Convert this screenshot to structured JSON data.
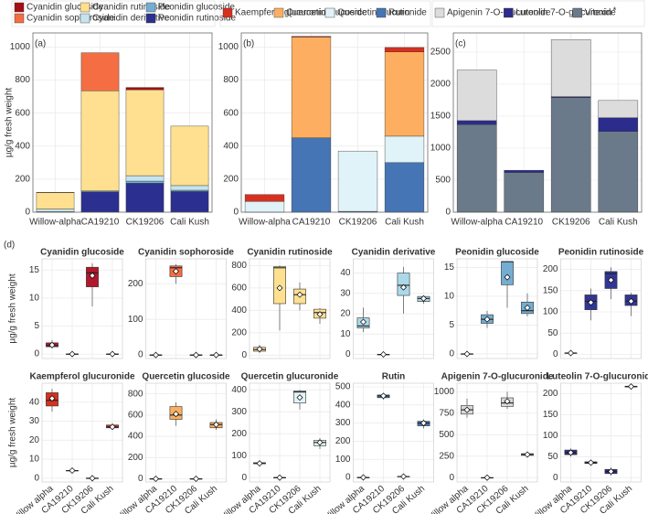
{
  "chart_data": [
    {
      "type": "bar",
      "panel": "(a)",
      "ylabel": "µg/g fresh weight",
      "categories": [
        "Willow-alpha",
        "CA19210",
        "CK19206",
        "Cali Kush"
      ],
      "ylim": [
        0,
        1085
      ],
      "yticks": [
        0,
        200,
        400,
        600,
        800,
        1000
      ],
      "series": [
        {
          "name": "Cyanidin glucoside",
          "color": "#a50f15",
          "values": [
            1.5,
            0,
            14,
            0
          ]
        },
        {
          "name": "Cyanidin sophoroside",
          "color": "#f46d43",
          "values": [
            0,
            230,
            0,
            0
          ]
        },
        {
          "name": "Cyanidin rutinoside",
          "color": "#fee090",
          "values": [
            100,
            606,
            520,
            360
          ]
        },
        {
          "name": "Cyanidin derivative",
          "color": "#c6e4ef",
          "values": [
            16,
            0,
            33,
            28
          ]
        },
        {
          "name": "Peonidin glucoside",
          "color": "#74add1",
          "values": [
            0,
            6,
            13,
            8
          ]
        },
        {
          "name": "Peonidin rutinoside",
          "color": "#2b2f8f",
          "values": [
            3,
            123,
            175,
            125
          ]
        }
      ]
    },
    {
      "type": "bar",
      "panel": "(b)",
      "categories": [
        "Willow-alpha",
        "CA19210",
        "CK19206",
        "Cali Kush"
      ],
      "ylim": [
        0,
        1085
      ],
      "yticks": [
        0,
        200,
        400,
        600,
        800,
        1000
      ],
      "series": [
        {
          "name": "Kaempferol glucuronide",
          "color": "#d7301f",
          "values": [
            42,
            4,
            0,
            27
          ]
        },
        {
          "name": "Quercetin glucoside",
          "color": "#fdae61",
          "values": [
            0,
            610,
            0,
            510
          ]
        },
        {
          "name": "Quercetin glucuronide",
          "color": "#e0f3f8",
          "values": [
            65,
            0,
            365,
            160
          ]
        },
        {
          "name": "Rutin",
          "color": "#4575b4",
          "values": [
            0,
            450,
            5,
            300
          ]
        }
      ]
    },
    {
      "type": "bar",
      "panel": "(c)",
      "annotation": "*",
      "categories": [
        "Willow-alpha",
        "CA19210",
        "CK19206",
        "Cali Kush"
      ],
      "ylim": [
        0,
        2800
      ],
      "yticks": [
        0,
        500,
        1000,
        1500,
        2000,
        2500
      ],
      "series": [
        {
          "name": "Apigenin 7-O-glucuronide",
          "color": "#dcdcdc",
          "values": [
            790,
            0,
            890,
            270
          ]
        },
        {
          "name": "Luteolin 7-O-glucuronide",
          "color": "#2c2c8c",
          "values": [
            60,
            35,
            15,
            215
          ]
        },
        {
          "name": "Vitexin",
          "color": "#6b7a8a",
          "values": [
            1370,
            620,
            1790,
            1260
          ]
        }
      ]
    },
    {
      "type": "box",
      "panel": "(d)",
      "ylabel": "µg/g fresh weight",
      "title": "Cyanidin glucoside",
      "color": "#b2182b",
      "ylim": [
        -0.8,
        17
      ],
      "yticks": [
        0,
        5,
        10,
        15
      ],
      "boxes": [
        {
          "min": 1,
          "q1": 1.3,
          "median": 1.5,
          "q3": 2,
          "max": 2.5,
          "mean": 1.6
        },
        {
          "min": 0,
          "q1": 0,
          "median": 0,
          "q3": 0,
          "max": 0,
          "mean": 0
        },
        {
          "min": 8.5,
          "q1": 12,
          "median": 14.5,
          "q3": 15.5,
          "max": 16.2,
          "mean": 14
        },
        {
          "min": 0,
          "q1": 0,
          "median": 0,
          "q3": 0,
          "max": 0,
          "mean": 0
        }
      ]
    },
    {
      "type": "box",
      "title": "Cyanidin sophoroside",
      "color": "#f46d43",
      "ylim": [
        -10,
        270
      ],
      "yticks": [
        0,
        100,
        200
      ],
      "boxes": [
        {
          "min": 0,
          "q1": 0,
          "median": 0,
          "q3": 0,
          "max": 0,
          "mean": 0
        },
        {
          "min": 200,
          "q1": 220,
          "median": 245,
          "q3": 250,
          "max": 255,
          "mean": 235
        },
        {
          "min": 0,
          "q1": 0,
          "median": 0,
          "q3": 0,
          "max": 0,
          "mean": 0
        },
        {
          "min": 0,
          "q1": 0,
          "median": 0,
          "q3": 0,
          "max": 0,
          "mean": 0
        }
      ]
    },
    {
      "type": "box",
      "title": "Cyanidin rutinoside",
      "color": "#fee090",
      "ylim": [
        -30,
        860
      ],
      "yticks": [
        0,
        200,
        400,
        600,
        800
      ],
      "boxes": [
        {
          "min": 20,
          "q1": 35,
          "median": 50,
          "q3": 70,
          "max": 90,
          "mean": 55
        },
        {
          "min": 220,
          "q1": 460,
          "median": 780,
          "q3": 790,
          "max": 800,
          "mean": 600
        },
        {
          "min": 400,
          "q1": 460,
          "median": 540,
          "q3": 590,
          "max": 650,
          "mean": 540
        },
        {
          "min": 280,
          "q1": 330,
          "median": 380,
          "q3": 410,
          "max": 420,
          "mean": 365
        }
      ]
    },
    {
      "type": "box",
      "title": "Cyanidin derivative",
      "color": "#abd9e9",
      "ylim": [
        -2,
        47
      ],
      "yticks": [
        0,
        10,
        20,
        30,
        40
      ],
      "boxes": [
        {
          "min": 11,
          "q1": 13,
          "median": 14,
          "q3": 18,
          "max": 23,
          "mean": 16
        },
        {
          "min": 0,
          "q1": 0,
          "median": 0,
          "q3": 0,
          "max": 0,
          "mean": 0
        },
        {
          "min": 20,
          "q1": 29,
          "median": 34,
          "q3": 40,
          "max": 43,
          "mean": 33
        },
        {
          "min": 25,
          "q1": 26,
          "median": 27.5,
          "q3": 28.5,
          "max": 29,
          "mean": 27.5
        }
      ]
    },
    {
      "type": "box",
      "title": "Peonidin glucoside",
      "color": "#74add1",
      "ylim": [
        -0.8,
        16.5
      ],
      "yticks": [
        0,
        5,
        10,
        15
      ],
      "boxes": [
        {
          "min": 0,
          "q1": 0,
          "median": 0,
          "q3": 0,
          "max": 0,
          "mean": 0
        },
        {
          "min": 4.5,
          "q1": 5.3,
          "median": 6,
          "q3": 6.8,
          "max": 7.5,
          "mean": 6
        },
        {
          "min": 8,
          "q1": 12,
          "median": 16,
          "q3": 16,
          "max": 16,
          "mean": 13.3
        },
        {
          "min": 6.5,
          "q1": 7,
          "median": 7.5,
          "q3": 9,
          "max": 10.5,
          "mean": 8
        }
      ]
    },
    {
      "type": "box",
      "title": "Peonidin rutinoside",
      "color": "#313695",
      "ylim": [
        -10,
        225
      ],
      "yticks": [
        0,
        50,
        100,
        150,
        200
      ],
      "boxes": [
        {
          "min": 2,
          "q1": 2,
          "median": 3,
          "q3": 3,
          "max": 4,
          "mean": 3
        },
        {
          "min": 80,
          "q1": 105,
          "median": 125,
          "q3": 140,
          "max": 155,
          "mean": 122
        },
        {
          "min": 130,
          "q1": 155,
          "median": 190,
          "q3": 195,
          "max": 205,
          "mean": 175
        },
        {
          "min": 90,
          "q1": 115,
          "median": 125,
          "q3": 140,
          "max": 145,
          "mean": 125
        }
      ]
    },
    {
      "type": "box",
      "ylabel": "µg/g fresh weight",
      "title": "Kaempferol glucuronide",
      "color": "#d7301f",
      "ylim": [
        -2,
        50
      ],
      "yticks": [
        0,
        10,
        20,
        30,
        40
      ],
      "categories": [
        "Willow alpha",
        "CA19210",
        "CK19206",
        "Cali Kush"
      ],
      "boxes": [
        {
          "min": 35,
          "q1": 38,
          "median": 41,
          "q3": 45,
          "max": 47,
          "mean": 42
        },
        {
          "min": 3.5,
          "q1": 3.8,
          "median": 4,
          "q3": 4.1,
          "max": 4.3,
          "mean": 4
        },
        {
          "min": 0,
          "q1": 0,
          "median": 0,
          "q3": 0,
          "max": 0,
          "mean": 0
        },
        {
          "min": 26,
          "q1": 26.5,
          "median": 27,
          "q3": 28,
          "max": 29,
          "mean": 27
        }
      ]
    },
    {
      "type": "box",
      "title": "Quercetin glucoside",
      "color": "#fdae61",
      "ylim": [
        -30,
        900
      ],
      "yticks": [
        0,
        200,
        400,
        600,
        800
      ],
      "categories": [
        "Willow alpha",
        "CA19210",
        "CK19206",
        "Cali Kush"
      ],
      "boxes": [
        {
          "min": 0,
          "q1": 0,
          "median": 0,
          "q3": 0,
          "max": 0,
          "mean": 0
        },
        {
          "min": 500,
          "q1": 560,
          "median": 600,
          "q3": 680,
          "max": 720,
          "mean": 610
        },
        {
          "min": 0,
          "q1": 0,
          "median": 0,
          "q3": 0,
          "max": 0,
          "mean": 0
        },
        {
          "min": 460,
          "q1": 480,
          "median": 510,
          "q3": 530,
          "max": 560,
          "mean": 510
        }
      ]
    },
    {
      "type": "box",
      "title": "Quercetin glucuronide",
      "color": "#e0f3f8",
      "ylim": [
        -20,
        430
      ],
      "yticks": [
        0,
        100,
        200,
        300,
        400
      ],
      "categories": [
        "Willow alpha",
        "CA19210",
        "CK19206",
        "Cali Kush"
      ],
      "boxes": [
        {
          "min": 60,
          "q1": 63,
          "median": 65,
          "q3": 68,
          "max": 70,
          "mean": 65
        },
        {
          "min": 0,
          "q1": 0,
          "median": 0,
          "q3": 0,
          "max": 0,
          "mean": 0
        },
        {
          "min": 310,
          "q1": 340,
          "median": 390,
          "q3": 395,
          "max": 400,
          "mean": 365
        },
        {
          "min": 130,
          "q1": 145,
          "median": 160,
          "q3": 170,
          "max": 180,
          "mean": 160
        }
      ]
    },
    {
      "type": "box",
      "title": "Rutin",
      "color": "#4575b4",
      "ylim": [
        -25,
        520
      ],
      "yticks": [
        0,
        100,
        200,
        300,
        400,
        500
      ],
      "categories": [
        "Willow alpha",
        "CA19210",
        "CK19206",
        "Cali Kush"
      ],
      "boxes": [
        {
          "min": 0,
          "q1": 0,
          "median": 0,
          "q3": 0,
          "max": 0,
          "mean": 0
        },
        {
          "min": 430,
          "q1": 440,
          "median": 450,
          "q3": 455,
          "max": 460,
          "mean": 450
        },
        {
          "min": 3,
          "q1": 4,
          "median": 5,
          "q3": 6,
          "max": 7,
          "mean": 5
        },
        {
          "min": 270,
          "q1": 285,
          "median": 300,
          "q3": 310,
          "max": 320,
          "mean": 300
        }
      ]
    },
    {
      "type": "box",
      "title": "Apigenin 7-O-glucuronide",
      "color": "#d9d9d9",
      "ylim": [
        -50,
        1100
      ],
      "yticks": [
        0,
        250,
        500,
        750,
        1000
      ],
      "categories": [
        "Willow alpha",
        "CA19210",
        "CK19206",
        "Cali Kush"
      ],
      "boxes": [
        {
          "min": 700,
          "q1": 740,
          "median": 790,
          "q3": 840,
          "max": 920,
          "mean": 790
        },
        {
          "min": 0,
          "q1": 0,
          "median": 0,
          "q3": 0,
          "max": 0,
          "mean": 0
        },
        {
          "min": 800,
          "q1": 830,
          "median": 870,
          "q3": 930,
          "max": 1000,
          "mean": 890
        },
        {
          "min": 250,
          "q1": 260,
          "median": 270,
          "q3": 280,
          "max": 300,
          "mean": 270
        }
      ]
    },
    {
      "type": "box",
      "title": "Luteolin 7-O-glucuronide",
      "color": "#2c2c8c",
      "ylim": [
        -10,
        225
      ],
      "yticks": [
        0,
        50,
        100,
        150,
        200
      ],
      "categories": [
        "Willow alpha",
        "CA19210",
        "CK19206",
        "Cali Kush"
      ],
      "boxes": [
        {
          "min": 50,
          "q1": 55,
          "median": 60,
          "q3": 66,
          "max": 70,
          "mean": 60
        },
        {
          "min": 32,
          "q1": 34,
          "median": 36,
          "q3": 38,
          "max": 40,
          "mean": 36
        },
        {
          "min": 5,
          "q1": 10,
          "median": 15,
          "q3": 20,
          "max": 25,
          "mean": 15
        },
        {
          "min": 215,
          "q1": 216,
          "median": 217,
          "q3": 218,
          "max": 219,
          "mean": 217
        }
      ]
    }
  ]
}
